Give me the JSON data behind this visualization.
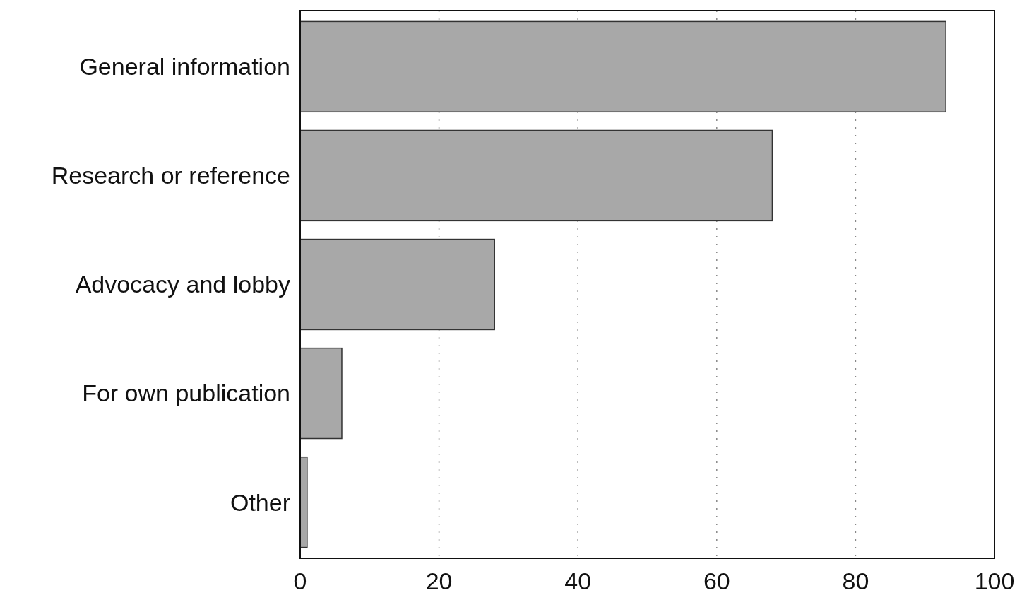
{
  "chart_data": {
    "type": "bar",
    "orientation": "horizontal",
    "categories": [
      "General information",
      "Research or reference",
      "Advocacy and lobby",
      "For own publication",
      "Other"
    ],
    "values": [
      93,
      68,
      28,
      6,
      1
    ],
    "color": "#a8a8a8",
    "xlim": [
      0,
      100
    ],
    "xticks": [
      0,
      20,
      40,
      60,
      80,
      100
    ],
    "grid": "x"
  }
}
